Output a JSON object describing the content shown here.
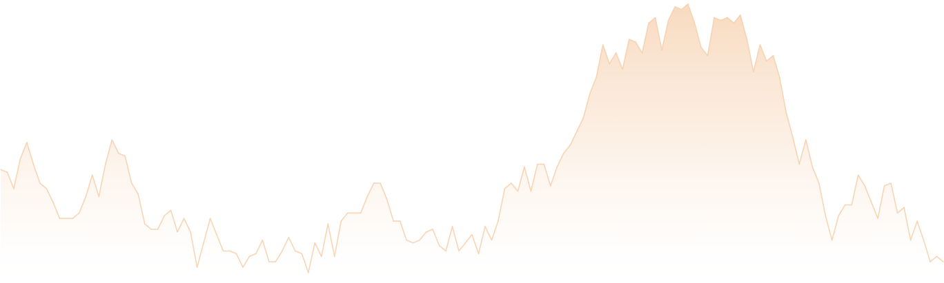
{
  "chart_data": {
    "type": "area",
    "title": "",
    "xlabel": "",
    "ylabel": "",
    "grid": false,
    "legend": "none",
    "axes_visible": false,
    "x": [
      0,
      1,
      2,
      3,
      4,
      5,
      6,
      7,
      8,
      9,
      10,
      11,
      12,
      13,
      14,
      15,
      16,
      17,
      18,
      19,
      20,
      21,
      22,
      23,
      24,
      25,
      26,
      27,
      28,
      29,
      30,
      31,
      32,
      33,
      34,
      35,
      36,
      37,
      38,
      39,
      40,
      41,
      42,
      43,
      44,
      45,
      46,
      47,
      48,
      49,
      50,
      51,
      52,
      53,
      54,
      55,
      56,
      57,
      58,
      59,
      60,
      61,
      62,
      63,
      64,
      65,
      66,
      67,
      68,
      69,
      70,
      71,
      72,
      73,
      74,
      75,
      76,
      77,
      78,
      79,
      80,
      81,
      82,
      83,
      84,
      85,
      86,
      87,
      88,
      89,
      90,
      91,
      92,
      93,
      94,
      95,
      96,
      97,
      98,
      99,
      100,
      101,
      102,
      103,
      104,
      105,
      106,
      107,
      108,
      109,
      110,
      111,
      112,
      113,
      114,
      115,
      116,
      117,
      118,
      119,
      120,
      121,
      122,
      123,
      124,
      125,
      126,
      127,
      128,
      129,
      130,
      131,
      132,
      133,
      134,
      135,
      136,
      137,
      138,
      139,
      140,
      141,
      142,
      143,
      144
    ],
    "xlim": [
      0,
      144
    ],
    "ylim": [
      0,
      100
    ],
    "series": [
      {
        "values": [
          38,
          37,
          31,
          42,
          48,
          40,
          33,
          31,
          26,
          20,
          20,
          20,
          22,
          28,
          36,
          28,
          40,
          49,
          44,
          43,
          33,
          29,
          18,
          16,
          16,
          21,
          23,
          15,
          20,
          15,
          2,
          11,
          20,
          14,
          8,
          8,
          7,
          2,
          6,
          7,
          12,
          4,
          4,
          8,
          13,
          8,
          7,
          0,
          11,
          6,
          18,
          6,
          19,
          22,
          22,
          22,
          28,
          33,
          33,
          27,
          19,
          19,
          12,
          11,
          12,
          15,
          16,
          10,
          8,
          17,
          8,
          11,
          14,
          7,
          17,
          12,
          19,
          31,
          33,
          30,
          39,
          30,
          40,
          40,
          32,
          39,
          44,
          47,
          52,
          57,
          66,
          72,
          84,
          77,
          81,
          75,
          86,
          85,
          81,
          92,
          94,
          82,
          93,
          98,
          97,
          99,
          92,
          83,
          80,
          94,
          93,
          94,
          92,
          95,
          86,
          74,
          84,
          78,
          80,
          72,
          59,
          50,
          40,
          49,
          39,
          33,
          21,
          12,
          21,
          25,
          25,
          36,
          32,
          26,
          20,
          32,
          33,
          22,
          24,
          12,
          19,
          12,
          4,
          6,
          4
        ],
        "color": "#f6cfa9"
      }
    ]
  }
}
